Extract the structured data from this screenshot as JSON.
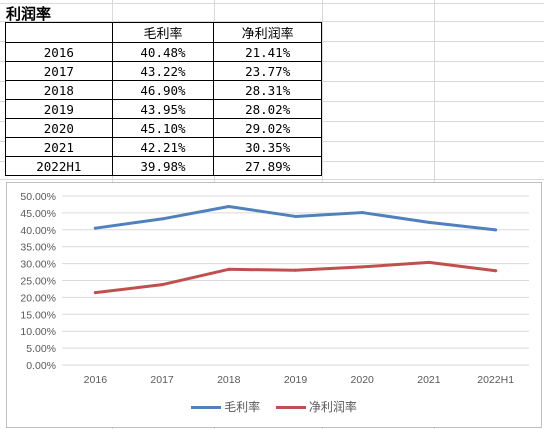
{
  "sheet_title": "利润率",
  "table": {
    "headers": [
      "",
      "毛利率",
      "净利润率"
    ],
    "rows": [
      [
        "2016",
        "40.48%",
        "21.41%"
      ],
      [
        "2017",
        "43.22%",
        "23.77%"
      ],
      [
        "2018",
        "46.90%",
        "28.31%"
      ],
      [
        "2019",
        "43.95%",
        "28.02%"
      ],
      [
        "2020",
        "45.10%",
        "29.02%"
      ],
      [
        "2021",
        "42.21%",
        "30.35%"
      ],
      [
        "2022H1",
        "39.98%",
        "27.89%"
      ]
    ]
  },
  "chart_data": {
    "type": "line",
    "title": "",
    "xlabel": "",
    "ylabel": "",
    "categories": [
      "2016",
      "2017",
      "2018",
      "2019",
      "2020",
      "2021",
      "2022H1"
    ],
    "ylim": [
      0,
      50
    ],
    "ytick_step": 5,
    "ytick_labels": [
      "0.00%",
      "5.00%",
      "10.00%",
      "15.00%",
      "20.00%",
      "25.00%",
      "30.00%",
      "35.00%",
      "40.00%",
      "45.00%",
      "50.00%"
    ],
    "grid": true,
    "legend_position": "bottom",
    "series": [
      {
        "name": "毛利率",
        "color": "#4f81bd",
        "values": [
          40.48,
          43.22,
          46.9,
          43.95,
          45.1,
          42.21,
          39.98
        ]
      },
      {
        "name": "净利润率",
        "color": "#c0504d",
        "values": [
          21.41,
          23.77,
          28.31,
          28.02,
          29.02,
          30.35,
          27.89
        ]
      }
    ]
  }
}
